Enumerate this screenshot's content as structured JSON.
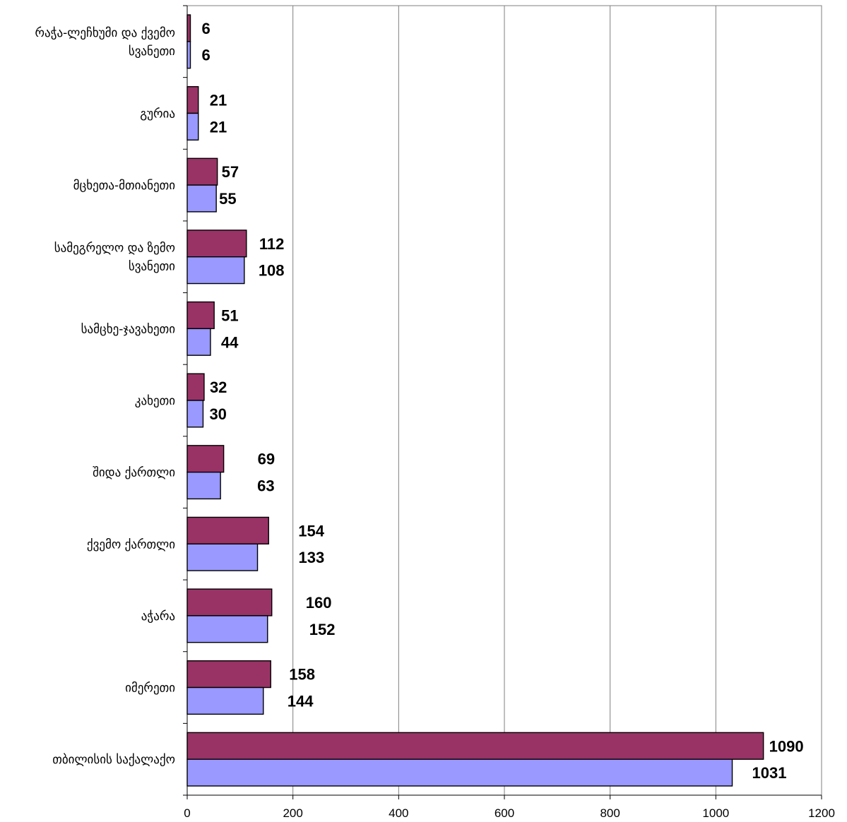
{
  "chart_data": {
    "type": "bar",
    "orientation": "horizontal",
    "grid": true,
    "legend": "none",
    "xlim": [
      0,
      1200
    ],
    "x_ticks": [
      "0",
      "200",
      "400",
      "600",
      "800",
      "1000",
      "1200"
    ],
    "categories": [
      [
        "რაჭა-ლეჩხუმი და ქვემო",
        "სვანეთი"
      ],
      [
        "გურია"
      ],
      [
        "მცხეთა-მთიანეთი"
      ],
      [
        "სამეგრელო და ზემო",
        "სვანეთი"
      ],
      [
        "სამცხე-ჯავახეთი"
      ],
      [
        "კახეთი"
      ],
      [
        "შიდა ქართლი"
      ],
      [
        "ქვემო ქართლი"
      ],
      [
        "აჭარა"
      ],
      [
        "იმერეთი"
      ],
      [
        "თბილისის საქალაქო"
      ]
    ],
    "series": [
      {
        "values": [
          6,
          21,
          57,
          112,
          51,
          32,
          69,
          154,
          160,
          158,
          1090
        ],
        "color": "#993366"
      },
      {
        "values": [
          6,
          21,
          55,
          108,
          44,
          30,
          63,
          133,
          152,
          144,
          1031
        ],
        "color": "#9999ff"
      }
    ],
    "label_text": [
      [
        "6",
        "21",
        "57",
        "112",
        "51",
        "32",
        "69",
        "154",
        "160",
        "158",
        "1090"
      ],
      [
        "6",
        "21",
        "55",
        "108",
        "44",
        "30",
        "63",
        "133",
        "152",
        "144",
        "1031"
      ]
    ]
  }
}
